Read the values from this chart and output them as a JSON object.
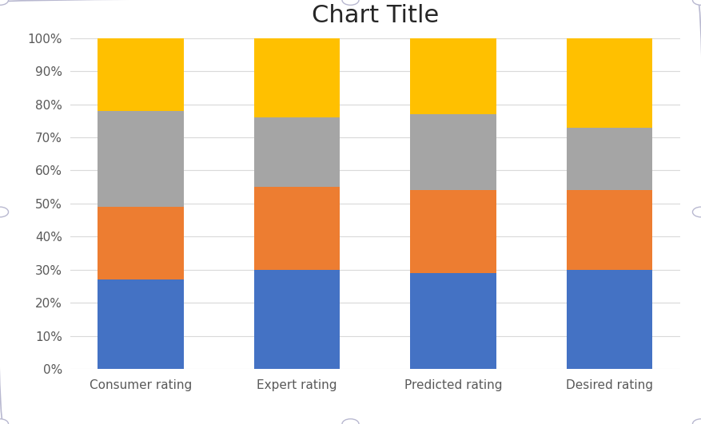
{
  "categories": [
    "Consumer rating",
    "Expert rating",
    "Predicted rating",
    "Desired rating"
  ],
  "series": {
    "Version 1": [
      0.27,
      0.3,
      0.29,
      0.3
    ],
    "Version 2": [
      0.22,
      0.25,
      0.25,
      0.24
    ],
    "Version 3": [
      0.29,
      0.21,
      0.23,
      0.19
    ],
    "Version 4": [
      0.22,
      0.24,
      0.23,
      0.27
    ]
  },
  "colors": {
    "Version 1": "#4472C4",
    "Version 2": "#ED7D31",
    "Version 3": "#A5A5A5",
    "Version 4": "#FFC000"
  },
  "title": "Chart Title",
  "title_fontsize": 22,
  "ylim": [
    0,
    1.0
  ],
  "yticks": [
    0.0,
    0.1,
    0.2,
    0.3,
    0.4,
    0.5,
    0.6,
    0.7,
    0.8,
    0.9,
    1.0
  ],
  "ytick_labels": [
    "0%",
    "10%",
    "20%",
    "30%",
    "40%",
    "50%",
    "60%",
    "70%",
    "80%",
    "90%",
    "100%"
  ],
  "bar_width": 0.55,
  "legend_fontsize": 11,
  "tick_fontsize": 11,
  "background_color": "#FFFFFF",
  "outer_bg": "#F2F2F2",
  "grid_color": "#D9D9D9",
  "frame_color": "#B8B8D0",
  "handle_color": "#E0E0E8"
}
